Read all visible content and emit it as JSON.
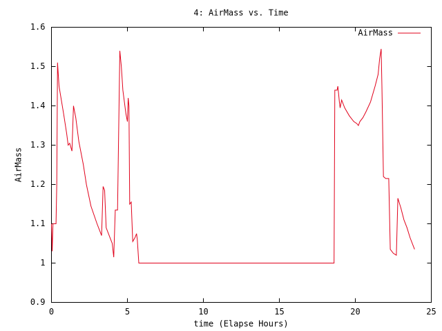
{
  "chart_data": {
    "type": "line",
    "title": "4: AirMass vs. Time",
    "xlabel": "time (Elapse Hours)",
    "ylabel": "AirMass",
    "xlim": [
      0,
      25
    ],
    "xticks": [
      0,
      5,
      10,
      15,
      20,
      25
    ],
    "ylim": [
      0.9,
      1.6
    ],
    "yticks": [
      0.9,
      1,
      1.1,
      1.2,
      1.3,
      1.4,
      1.5,
      1.6
    ],
    "legend": "upper right",
    "grid": false,
    "x": [
      0,
      0.05,
      0.1,
      0.3,
      0.35,
      0.4,
      0.5,
      0.8,
      1.0,
      1.1,
      1.2,
      1.35,
      1.45,
      1.6,
      1.8,
      2.1,
      2.3,
      2.6,
      3.0,
      3.3,
      3.4,
      3.5,
      3.6,
      3.9,
      4.0,
      4.1,
      4.2,
      4.35,
      4.5,
      4.6,
      4.7,
      4.9,
      5.0,
      5.05,
      5.1,
      5.15,
      5.25,
      5.35,
      5.5,
      5.6,
      5.65,
      5.75,
      18.6,
      18.65,
      18.8,
      18.85,
      18.95,
      19.0,
      19.1,
      19.3,
      19.6,
      19.9,
      20.1,
      20.2,
      20.3,
      20.5,
      20.7,
      21.0,
      21.3,
      21.5,
      21.6,
      21.7,
      21.75,
      21.85,
      22.0,
      22.2,
      22.3,
      22.5,
      22.7,
      22.8,
      23.0,
      23.2,
      23.4,
      23.6,
      23.8,
      23.9
    ],
    "series": [
      {
        "name": "AirMass",
        "color": "#e0001a",
        "values": [
          1.1,
          1.03,
          1.1,
          1.1,
          1.2,
          1.51,
          1.45,
          1.38,
          1.33,
          1.3,
          1.305,
          1.285,
          1.4,
          1.37,
          1.31,
          1.25,
          1.2,
          1.145,
          1.1,
          1.07,
          1.195,
          1.185,
          1.09,
          1.06,
          1.05,
          1.015,
          1.135,
          1.135,
          1.54,
          1.5,
          1.44,
          1.38,
          1.36,
          1.42,
          1.4,
          1.15,
          1.155,
          1.055,
          1.065,
          1.075,
          1.06,
          1.0,
          1.0,
          1.44,
          1.44,
          1.45,
          1.41,
          1.395,
          1.415,
          1.395,
          1.375,
          1.36,
          1.355,
          1.35,
          1.36,
          1.37,
          1.385,
          1.41,
          1.45,
          1.48,
          1.52,
          1.545,
          1.45,
          1.22,
          1.215,
          1.215,
          1.035,
          1.025,
          1.02,
          1.165,
          1.14,
          1.11,
          1.09,
          1.065,
          1.045,
          1.035
        ]
      }
    ]
  }
}
